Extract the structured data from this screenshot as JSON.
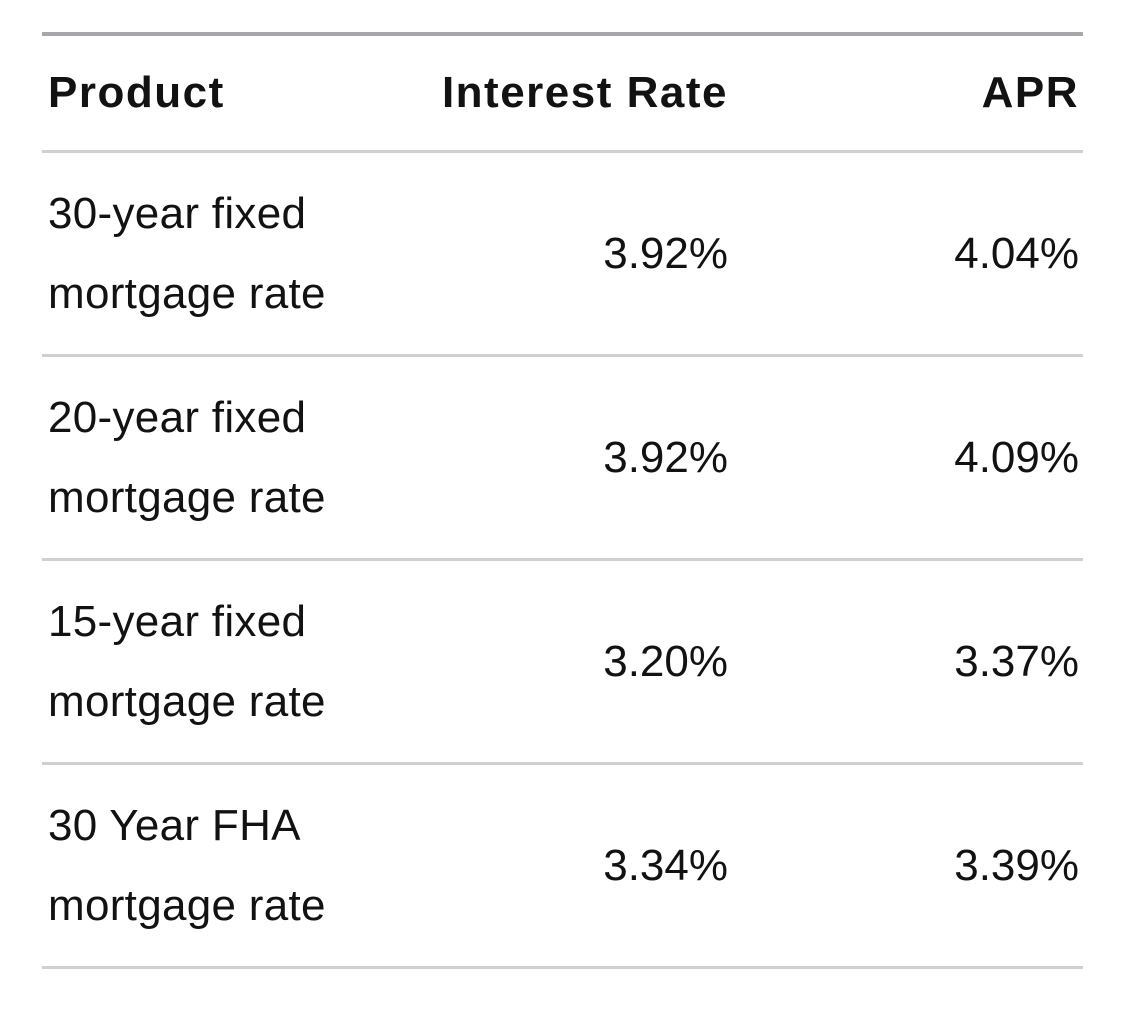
{
  "table": {
    "columns": [
      {
        "label": "Product",
        "align": "left"
      },
      {
        "label": "Interest Rate",
        "align": "right"
      },
      {
        "label": "APR",
        "align": "right"
      }
    ],
    "rows": [
      {
        "product": "30-year fixed mortgage rate",
        "interest_rate": "3.92%",
        "apr": "4.04%"
      },
      {
        "product": "20-year fixed mortgage rate",
        "interest_rate": "3.92%",
        "apr": "4.09%"
      },
      {
        "product": "15-year fixed mortgage rate",
        "interest_rate": "3.20%",
        "apr": "3.37%"
      },
      {
        "product": "30 Year FHA mortgage rate",
        "interest_rate": "3.34%",
        "apr": "3.39%"
      }
    ],
    "colors": {
      "text": "#121212",
      "top_rule": "#a7a7ab",
      "divider": "#d0d0d3",
      "background": "#ffffff"
    }
  },
  "chart_data": {
    "type": "table",
    "title": "",
    "columns": [
      "Product",
      "Interest Rate",
      "APR"
    ],
    "rows": [
      [
        "30-year fixed mortgage rate",
        "3.92%",
        "4.04%"
      ],
      [
        "20-year fixed mortgage rate",
        "3.92%",
        "4.09%"
      ],
      [
        "15-year fixed mortgage rate",
        "3.20%",
        "3.37%"
      ],
      [
        "30 Year FHA mortgage rate",
        "3.34%",
        "3.39%"
      ]
    ],
    "numeric_values": {
      "interest_rate_pct": [
        3.92,
        3.92,
        3.2,
        3.34
      ],
      "apr_pct": [
        4.04,
        4.09,
        3.37,
        3.39
      ]
    },
    "layout_hints": {
      "product_column_align": "left",
      "rate_columns_align": "right",
      "gridlines": "horizontal-only"
    }
  }
}
